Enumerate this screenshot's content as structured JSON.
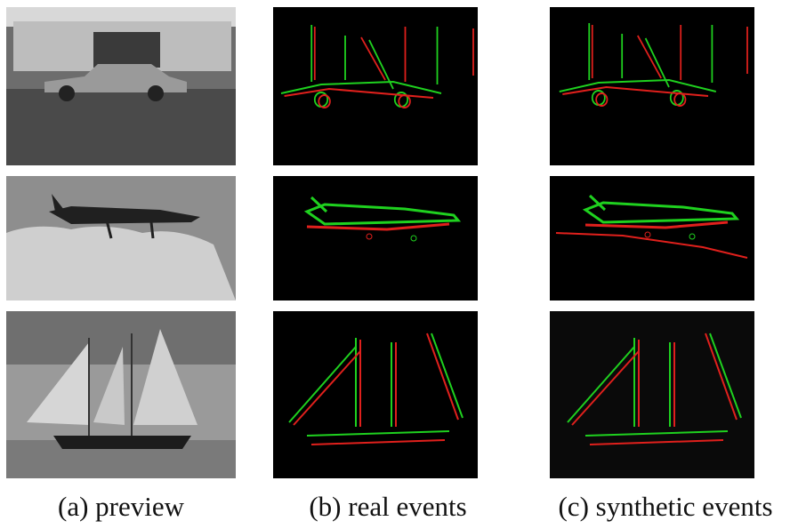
{
  "columns": [
    {
      "caption": "(a) preview"
    },
    {
      "caption": "(b) real events"
    },
    {
      "caption": "(c) synthetic events"
    }
  ]
}
